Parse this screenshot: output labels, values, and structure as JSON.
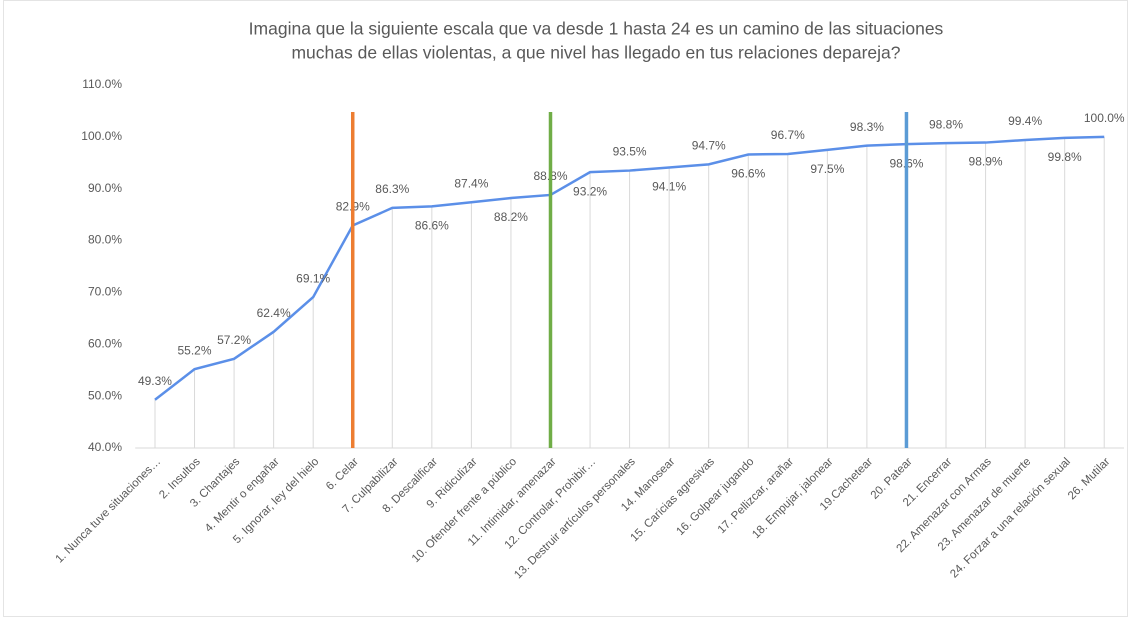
{
  "chart_data": {
    "type": "line",
    "title": [
      "Imagina que la siguiente escala que va desde 1 hasta 24 es un camino de las situaciones",
      "muchas de ellas violentas, a que nivel has llegado en tus relaciones depareja?"
    ],
    "categories": [
      "1. Nunca tuve situaciones…",
      "2. Insultos",
      "3. Chantajes",
      "4. Mentir  o engañar",
      "5. Ignorar, ley del hielo",
      "6. Celar",
      "7. Culpabilizar",
      "8. Descalificar",
      "9. Ridiculizar",
      "10. Ofender frente a público",
      "11. Intimidar, amenazar",
      "12. Controlar, Prohibir…",
      "13. Destruir artículos personales",
      "14. Manosear",
      "15. Caricias agresivas",
      "16. Golpear jugando",
      "17. Pellizcar,  arañar",
      "18. Empujar, jalonear",
      "19.Cachetear",
      "20. Patear",
      "21. Encerrar",
      "22. Amenazar con Armas",
      "23. Amenazar de muerte",
      "24. Forzar  a una relación sexual",
      "26. Mutilar"
    ],
    "values": [
      49.3,
      55.2,
      57.2,
      62.4,
      69.1,
      82.9,
      86.3,
      86.6,
      87.4,
      88.2,
      88.8,
      93.2,
      93.5,
      94.1,
      94.7,
      96.6,
      96.7,
      97.5,
      98.3,
      98.6,
      98.8,
      98.9,
      99.4,
      99.8,
      100.0
    ],
    "value_labels": [
      "49.3%",
      "55.2%",
      "57.2%",
      "62.4%",
      "69.1%",
      "82.9%",
      "86.3%",
      "86.6%",
      "87.4%",
      "88.2%",
      "88.8%",
      "93.2%",
      "93.5%",
      "94.1%",
      "94.7%",
      "96.6%",
      "96.7%",
      "97.5%",
      "98.3%",
      "98.6%",
      "98.8%",
      "98.9%",
      "99.4%",
      "99.8%",
      "100.0%"
    ],
    "color": "#5b8fe8",
    "ylim": [
      40,
      110
    ],
    "yticks": [
      {
        "value": 40,
        "label": "40.0%"
      },
      {
        "value": 50,
        "label": "50.0%"
      },
      {
        "value": 60,
        "label": "60.0%"
      },
      {
        "value": 70,
        "label": "70.0%"
      },
      {
        "value": 80,
        "label": "80.0%"
      },
      {
        "value": 90,
        "label": "90.0%"
      },
      {
        "value": 100,
        "label": "100.0%"
      },
      {
        "value": 110,
        "label": "110.0%"
      }
    ],
    "vertical_lines": [
      {
        "x": 5,
        "color": "#ed7d31"
      },
      {
        "x": 10,
        "color": "#70ad47"
      },
      {
        "x": 19,
        "color": "#5b9bd5"
      }
    ]
  }
}
